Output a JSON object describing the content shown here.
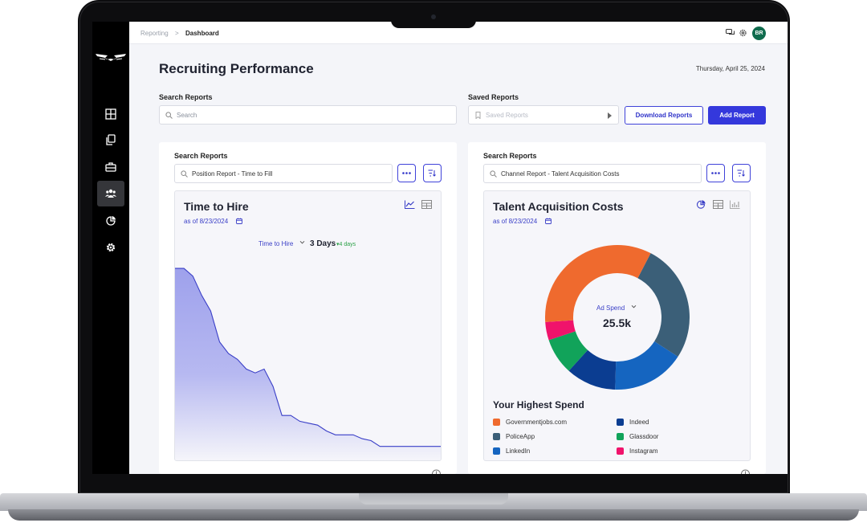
{
  "breadcrumb": {
    "parent": "Reporting",
    "separator": ">",
    "current": "Dashboard"
  },
  "user": {
    "initials": "BR"
  },
  "page": {
    "title": "Recruiting Performance",
    "date": "Thursday, April 25, 2024"
  },
  "search_reports": {
    "label": "Search Reports",
    "placeholder": "Search"
  },
  "saved_reports": {
    "label": "Saved Reports",
    "placeholder": "Saved Reports"
  },
  "buttons": {
    "download": "Download Reports",
    "add": "Add Report"
  },
  "left_panel": {
    "label": "Search Reports",
    "query": "Position Report - Time to Fill",
    "card": {
      "title": "Time to Hire",
      "as_of": "as of 8/23/2024",
      "metric_selector": "Time to Hire",
      "metric_value": "3 Days",
      "metric_delta": "4 days"
    }
  },
  "right_panel": {
    "label": "Search Reports",
    "query": "Channel Report - Talent Acquisition Costs",
    "card": {
      "title": "Talent Acquisition Costs",
      "as_of": "as of 8/23/2024",
      "donut_label": "Ad Spend",
      "donut_value": "25.5k",
      "spend_title": "Your Highest Spend",
      "legend": [
        {
          "name": "Governmentjobs.com",
          "color": "#ef6a2e"
        },
        {
          "name": "Indeed",
          "color": "#0b3d91"
        },
        {
          "name": "PoliceApp",
          "color": "#3b5f78"
        },
        {
          "name": "Glassdoor",
          "color": "#11a35a"
        },
        {
          "name": "LinkedIn",
          "color": "#1565c0"
        },
        {
          "name": "Instagram",
          "color": "#f0136b"
        }
      ]
    }
  },
  "chart_data": [
    {
      "type": "area",
      "title": "Time to Hire",
      "x": [
        0,
        1,
        2,
        3,
        4,
        5,
        6,
        7,
        8,
        9,
        10,
        11,
        12,
        13,
        14,
        15,
        16,
        17,
        18,
        19,
        20,
        21,
        22,
        23,
        24,
        25,
        26,
        27,
        28,
        29,
        30
      ],
      "y": [
        100,
        100,
        96,
        86,
        78,
        62,
        56,
        53,
        48,
        46,
        48,
        39,
        24,
        24,
        21,
        20,
        19,
        16,
        14,
        14,
        14,
        12,
        11,
        8,
        8,
        8,
        8,
        8,
        8,
        8,
        8
      ],
      "ylim": [
        0,
        110
      ],
      "color": "#7b7fe3"
    },
    {
      "type": "pie",
      "style": "donut",
      "title": "Ad Spend",
      "categories": [
        "Governmentjobs.com",
        "PoliceApp",
        "LinkedIn",
        "Indeed",
        "Glassdoor",
        "Instagram"
      ],
      "values": [
        33,
        26,
        16,
        11,
        8,
        4
      ],
      "colors": [
        "#ef6a2e",
        "#3b5f78",
        "#1565c0",
        "#0b3d91",
        "#11a35a",
        "#f0136b"
      ]
    }
  ]
}
